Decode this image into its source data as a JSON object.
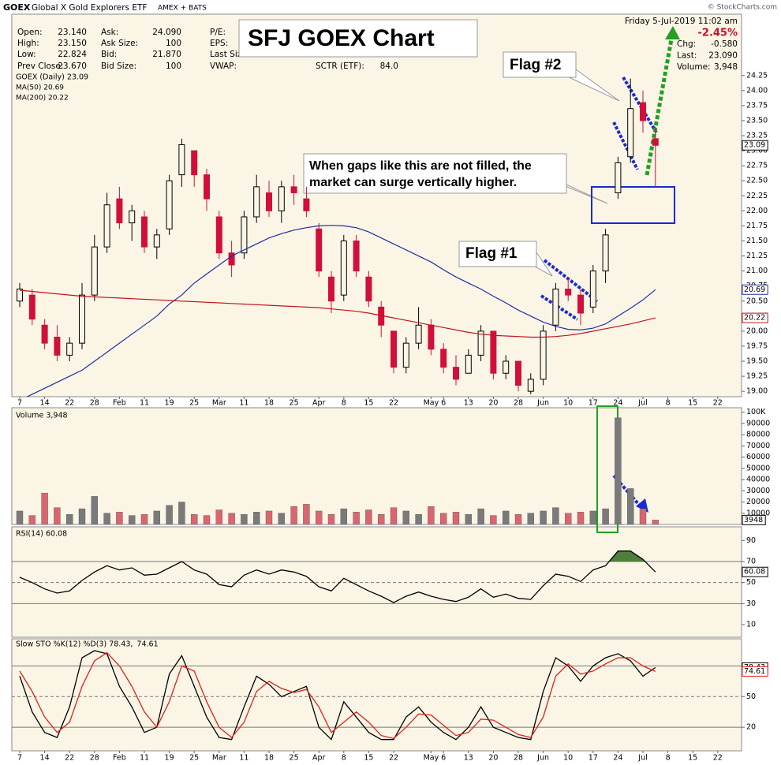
{
  "header": {
    "symbol": "GOEX",
    "name": "Global X Gold Explorers ETF",
    "exchange": "AMEX + BATS",
    "source": "© StockCharts.com",
    "date": "Friday  5-Jul-2019 11:02 am",
    "change_pct": "-2.45%",
    "col1": [
      [
        "Open:",
        "23.140"
      ],
      [
        "High:",
        "23.150"
      ],
      [
        "Low:",
        "22.824"
      ],
      [
        "Prev Close:",
        "23.670"
      ]
    ],
    "col2": [
      [
        "Ask:",
        "24.090"
      ],
      [
        "Ask Size:",
        "100"
      ],
      [
        "Bid:",
        "21.870"
      ],
      [
        "Bid Size:",
        "100"
      ]
    ],
    "col3": [
      "P/E:",
      "EPS:",
      "Last Size:",
      "VWAP:"
    ],
    "col4": [
      [
        "SCTR (ETF):",
        "84.0"
      ]
    ],
    "right": [
      [
        "Chg:",
        "-0.580"
      ],
      [
        "Last:",
        "23.090"
      ],
      [
        "Volume:",
        "3,948"
      ]
    ]
  },
  "annotations": {
    "title": "SFJ GOEX Chart",
    "flag2": "Flag #2",
    "flag1": "Flag #1",
    "callout": [
      "When gaps like this are not filled, the",
      "market can surge vertically higher."
    ]
  },
  "chart_data": [
    {
      "type": "candlestick",
      "name": "GOEX (Daily) 23.09",
      "last_label": "23.09",
      "up_color": "#000000",
      "down_color": "#d0103a",
      "categories": [
        "7",
        null,
        "14",
        null,
        "22",
        null,
        "28",
        null,
        "Feb",
        null,
        "11",
        null,
        "19",
        null,
        "25",
        null,
        "Mar",
        null,
        "11",
        null,
        "18",
        null,
        "25",
        null,
        "Apr",
        null,
        "8",
        null,
        "15",
        null,
        "22",
        null,
        null,
        "May",
        "6",
        null,
        "13",
        null,
        "20",
        null,
        "28",
        null,
        "Jun",
        null,
        "10",
        null,
        "17",
        null,
        "24",
        null,
        "Jul",
        null,
        "8",
        null,
        "15",
        null,
        "22",
        null
      ],
      "open": [
        20.5,
        20.6,
        20.1,
        19.9,
        19.6,
        19.8,
        20.6,
        21.4,
        22.2,
        21.8,
        21.9,
        21.4,
        21.7,
        22.6,
        23.0,
        22.6,
        21.9,
        21.3,
        21.3,
        21.9,
        22.3,
        22.0,
        22.4,
        22.2,
        21.7,
        20.9,
        20.6,
        21.5,
        20.9,
        20.4,
        20.0,
        19.4,
        19.8,
        20.1,
        19.7,
        19.4,
        19.3,
        19.6,
        20.0,
        19.3,
        19.5,
        19.0,
        19.2,
        20.1,
        20.7,
        20.6,
        20.4,
        21.0,
        22.3,
        22.9,
        23.8,
        23.2,
        null,
        null,
        null,
        null,
        null,
        null
      ],
      "high": [
        20.8,
        20.7,
        20.2,
        20.1,
        19.9,
        20.8,
        21.6,
        22.3,
        22.4,
        22.1,
        22.0,
        21.7,
        22.6,
        23.2,
        23.0,
        22.7,
        22.0,
        21.5,
        22.0,
        22.6,
        22.5,
        22.5,
        22.6,
        22.4,
        21.8,
        21.0,
        21.6,
        21.6,
        21.0,
        20.5,
        20.0,
        19.9,
        20.4,
        20.2,
        19.8,
        19.6,
        19.7,
        20.1,
        20.0,
        19.6,
        19.5,
        19.3,
        20.1,
        20.8,
        20.9,
        20.7,
        21.1,
        21.7,
        22.9,
        24.2,
        24.0,
        23.4,
        null,
        null,
        null,
        null,
        null,
        null
      ],
      "low": [
        20.4,
        20.1,
        19.7,
        19.5,
        19.5,
        19.7,
        20.5,
        21.3,
        21.7,
        21.5,
        21.3,
        21.2,
        21.6,
        22.4,
        22.4,
        22.0,
        21.2,
        20.9,
        21.2,
        21.8,
        21.9,
        21.8,
        22.1,
        21.9,
        20.9,
        20.3,
        20.5,
        20.9,
        20.4,
        19.9,
        19.3,
        19.3,
        19.7,
        19.6,
        19.3,
        19.1,
        19.3,
        19.5,
        19.2,
        19.2,
        19.0,
        18.95,
        19.1,
        20.0,
        20.5,
        20.1,
        20.3,
        20.8,
        22.2,
        22.8,
        23.3,
        22.4,
        null,
        null,
        null,
        null,
        null,
        null
      ],
      "close": [
        20.7,
        20.2,
        19.8,
        19.6,
        19.8,
        20.6,
        21.4,
        22.1,
        21.8,
        22.0,
        21.4,
        21.6,
        22.5,
        23.1,
        22.6,
        22.2,
        21.3,
        21.1,
        21.9,
        22.4,
        22.0,
        22.4,
        22.3,
        22.0,
        21.0,
        20.5,
        21.5,
        21.0,
        20.5,
        20.1,
        19.4,
        19.8,
        20.1,
        19.7,
        19.4,
        19.2,
        19.6,
        20.0,
        19.3,
        19.5,
        19.1,
        19.2,
        20.0,
        20.7,
        20.6,
        20.3,
        21.0,
        21.6,
        22.8,
        23.7,
        23.5,
        23.09,
        null,
        null,
        null,
        null,
        null,
        null
      ],
      "overlays": [
        {
          "name": "MA(50) 20.69",
          "color": "#1f2fa0",
          "last_label": "20.69",
          "values": [
            18.85,
            18.95,
            19.05,
            19.15,
            19.25,
            19.35,
            19.5,
            19.65,
            19.8,
            19.95,
            20.1,
            20.25,
            20.45,
            20.6,
            20.8,
            20.95,
            21.1,
            21.25,
            21.35,
            21.45,
            21.55,
            21.62,
            21.68,
            21.72,
            21.75,
            21.76,
            21.75,
            21.72,
            21.65,
            21.55,
            21.45,
            21.35,
            21.25,
            21.15,
            21.02,
            20.9,
            20.8,
            20.7,
            20.58,
            20.47,
            20.35,
            20.25,
            20.15,
            20.08,
            20.03,
            20.02,
            20.05,
            20.12,
            20.25,
            20.38,
            20.52,
            20.69,
            null,
            null,
            null,
            null,
            null,
            null
          ]
        },
        {
          "name": "MA(200) 20.22",
          "color": "#c0151b",
          "last_label": "20.22",
          "values": [
            20.68,
            20.66,
            20.64,
            20.62,
            20.6,
            20.58,
            20.57,
            20.56,
            20.55,
            20.54,
            20.53,
            20.52,
            20.51,
            20.5,
            20.49,
            20.48,
            20.47,
            20.46,
            20.45,
            20.44,
            20.43,
            20.42,
            20.41,
            20.4,
            20.39,
            20.37,
            20.35,
            20.33,
            20.3,
            20.26,
            20.22,
            20.18,
            20.14,
            20.1,
            20.06,
            20.02,
            19.98,
            19.95,
            19.93,
            19.92,
            19.91,
            19.9,
            19.9,
            19.91,
            19.93,
            19.96,
            20.0,
            20.04,
            20.08,
            20.12,
            20.17,
            20.22,
            null,
            null,
            null,
            null,
            null,
            null
          ]
        }
      ],
      "ylim": [
        18.91,
        25.27
      ],
      "yticks": [
        {
          "value": 19,
          "label": "19.00"
        },
        19.25,
        {
          "value": 19.5,
          "label": "19.50"
        },
        19.75,
        {
          "value": 20,
          "label": "20.00"
        },
        20.25,
        {
          "value": 20.5,
          "label": "20.50"
        },
        20.75,
        {
          "value": 21,
          "label": "21.00"
        },
        21.25,
        {
          "value": 21.5,
          "label": "21.50"
        },
        21.75,
        {
          "value": 22,
          "label": "22.00"
        },
        22.25,
        {
          "value": 22.5,
          "label": "22.50"
        },
        22.75,
        {
          "value": 23,
          "label": "23.00"
        },
        23.25,
        {
          "value": 23.5,
          "label": "23.50"
        },
        23.75,
        {
          "value": 24,
          "label": "24.00"
        },
        24.25
      ]
    },
    {
      "type": "bar",
      "name": "Volume 3,948",
      "last_label": "3948",
      "up_color": "#7a7a7a",
      "down_color": "#d9666f",
      "values": [
        12000,
        8000,
        28000,
        15000,
        9000,
        14000,
        25000,
        10000,
        11000,
        8000,
        9000,
        12000,
        17000,
        20000,
        9000,
        8000,
        13000,
        10000,
        9000,
        11000,
        12000,
        10000,
        16000,
        18000,
        12000,
        9000,
        14000,
        11000,
        13000,
        9000,
        15000,
        12000,
        9000,
        16000,
        10000,
        11000,
        9000,
        14000,
        8000,
        12000,
        9000,
        10000,
        12000,
        15000,
        10000,
        11000,
        12000,
        14000,
        95000,
        32000,
        14000,
        3948,
        null,
        null,
        null,
        null,
        null,
        null
      ],
      "ylim": [
        0,
        104000
      ],
      "yticks": [
        10000,
        20000,
        30000,
        40000,
        50000,
        60000,
        70000,
        80000,
        90000,
        {
          "value": 100000,
          "label": "100K"
        }
      ]
    },
    {
      "type": "line",
      "name": "RSI(14) 60.08",
      "last_label": "60.08",
      "color": "#000000",
      "fill_color": "#4f7f3a",
      "fill_above": 70,
      "levels": [
        30,
        50,
        70
      ],
      "values": [
        55,
        50,
        44,
        40,
        42,
        52,
        60,
        66,
        62,
        64,
        57,
        58,
        64,
        70,
        62,
        58,
        48,
        46,
        57,
        62,
        58,
        62,
        60,
        56,
        46,
        42,
        54,
        48,
        42,
        37,
        31,
        37,
        41,
        37,
        34,
        32,
        36,
        44,
        36,
        39,
        35,
        34,
        47,
        58,
        56,
        51,
        62,
        66,
        80,
        80,
        72,
        60.08,
        null,
        null,
        null,
        null,
        null,
        null
      ],
      "ylim": [
        -2,
        100
      ],
      "yticks": [
        10,
        30,
        50,
        70,
        90
      ]
    },
    {
      "type": "line",
      "levels": [
        20,
        50,
        80
      ],
      "categories": [
        "7",
        null,
        "14",
        null,
        "22",
        null,
        "28",
        null,
        "Feb",
        null,
        "11",
        null,
        "19",
        null,
        "25",
        null,
        "Mar",
        null,
        "11",
        null,
        "18",
        null,
        "25",
        null,
        "Apr",
        null,
        "8",
        null,
        "15",
        null,
        "22",
        null,
        null,
        "May",
        "6",
        null,
        "13",
        null,
        "20",
        null,
        "28",
        null,
        "Jun",
        null,
        "10",
        null,
        "17",
        null,
        "24",
        null,
        "Jul",
        null,
        "8",
        null,
        "15",
        null,
        "22",
        null
      ],
      "series": [
        {
          "name": "Slow STO %K(12) %D(3) 78.43,",
          "color": "#000000",
          "last_label": "78.43",
          "values": [
            70,
            35,
            15,
            10,
            40,
            88,
            95,
            92,
            60,
            40,
            15,
            20,
            72,
            90,
            60,
            30,
            10,
            8,
            40,
            70,
            62,
            50,
            55,
            60,
            20,
            8,
            45,
            30,
            15,
            8,
            8,
            30,
            40,
            25,
            15,
            8,
            20,
            40,
            20,
            15,
            10,
            8,
            55,
            88,
            80,
            65,
            80,
            88,
            92,
            85,
            70,
            78.43,
            null,
            null,
            null,
            null,
            null,
            null
          ]
        },
        {
          "name": "74.61",
          "color": "#e0201b",
          "last_label": "74.61",
          "values": [
            75,
            55,
            30,
            15,
            25,
            60,
            85,
            93,
            80,
            60,
            35,
            20,
            45,
            80,
            75,
            45,
            20,
            10,
            25,
            55,
            65,
            58,
            54,
            57,
            40,
            15,
            25,
            35,
            25,
            12,
            9,
            20,
            33,
            32,
            22,
            12,
            15,
            28,
            27,
            20,
            13,
            10,
            30,
            70,
            82,
            72,
            75,
            82,
            88,
            88,
            80,
            74.61,
            null,
            null,
            null,
            null,
            null,
            null
          ]
        }
      ],
      "ylim": [
        -3,
        105
      ],
      "yticks": [
        20,
        50,
        80
      ]
    }
  ]
}
